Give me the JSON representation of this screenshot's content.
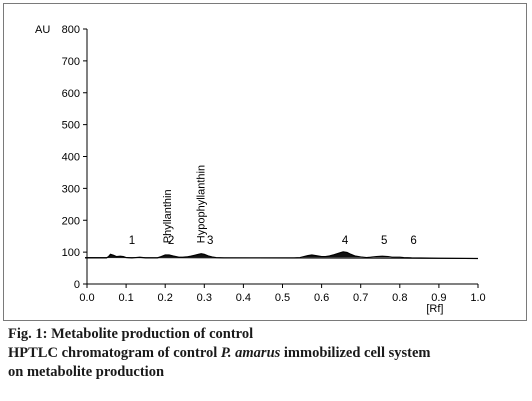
{
  "chart_data": {
    "type": "line",
    "y_unit_label": "AU",
    "x_unit_label": "[Rf]",
    "xlim": [
      0.0,
      1.0
    ],
    "ylim": [
      0,
      800
    ],
    "x_ticks": [
      "0.0",
      "0.1",
      "0.2",
      "0.3",
      "0.4",
      "0.5",
      "0.6",
      "0.7",
      "0.8",
      "0.9",
      "1.0"
    ],
    "y_ticks": [
      "0",
      "100",
      "200",
      "300",
      "400",
      "500",
      "600",
      "700",
      "800"
    ],
    "baseline": 83,
    "trace": [
      [
        -0.005,
        82
      ],
      [
        0.05,
        82
      ],
      [
        0.055,
        86
      ],
      [
        0.06,
        93
      ],
      [
        0.068,
        90
      ],
      [
        0.075,
        86
      ],
      [
        0.085,
        87
      ],
      [
        0.093,
        86
      ],
      [
        0.1,
        83
      ],
      [
        0.115,
        82
      ],
      [
        0.125,
        83
      ],
      [
        0.135,
        84
      ],
      [
        0.15,
        82
      ],
      [
        0.18,
        82
      ],
      [
        0.19,
        86
      ],
      [
        0.2,
        91
      ],
      [
        0.21,
        91
      ],
      [
        0.22,
        88
      ],
      [
        0.235,
        84
      ],
      [
        0.245,
        84
      ],
      [
        0.255,
        85
      ],
      [
        0.265,
        87
      ],
      [
        0.275,
        90
      ],
      [
        0.285,
        93
      ],
      [
        0.292,
        95
      ],
      [
        0.3,
        93
      ],
      [
        0.31,
        88
      ],
      [
        0.32,
        85
      ],
      [
        0.33,
        83
      ],
      [
        0.35,
        82
      ],
      [
        0.53,
        82
      ],
      [
        0.545,
        83
      ],
      [
        0.555,
        86
      ],
      [
        0.565,
        89
      ],
      [
        0.575,
        91
      ],
      [
        0.585,
        89
      ],
      [
        0.6,
        86
      ],
      [
        0.61,
        86
      ],
      [
        0.62,
        88
      ],
      [
        0.632,
        92
      ],
      [
        0.645,
        97
      ],
      [
        0.655,
        101
      ],
      [
        0.665,
        99
      ],
      [
        0.675,
        93
      ],
      [
        0.685,
        88
      ],
      [
        0.7,
        85
      ],
      [
        0.715,
        83
      ],
      [
        0.725,
        84
      ],
      [
        0.74,
        86
      ],
      [
        0.755,
        87
      ],
      [
        0.77,
        86
      ],
      [
        0.78,
        84
      ],
      [
        0.79,
        84
      ],
      [
        0.8,
        84
      ],
      [
        0.81,
        83
      ],
      [
        0.83,
        82
      ],
      [
        0.9,
        81
      ],
      [
        1.0,
        80
      ]
    ],
    "peaks": [
      {
        "label": "1",
        "rf": 0.11
      },
      {
        "label": "2",
        "rf": 0.21
      },
      {
        "label": "3",
        "rf": 0.31
      },
      {
        "label": "4",
        "rf": 0.655
      },
      {
        "label": "5",
        "rf": 0.755
      },
      {
        "label": "6",
        "rf": 0.83
      }
    ],
    "compound_labels": [
      {
        "text": "Phyllanthin",
        "rf": 0.205
      },
      {
        "text": "Hypophyllanthin",
        "rf": 0.29
      }
    ]
  },
  "caption": {
    "line1": "Fig. 1: Metabolite production of control",
    "line2_prefix": "HPTLC chromatogram of control ",
    "line2_species": "P. amarus",
    "line2_suffix": " immobilized cell system",
    "line3": "on metabolite production"
  }
}
